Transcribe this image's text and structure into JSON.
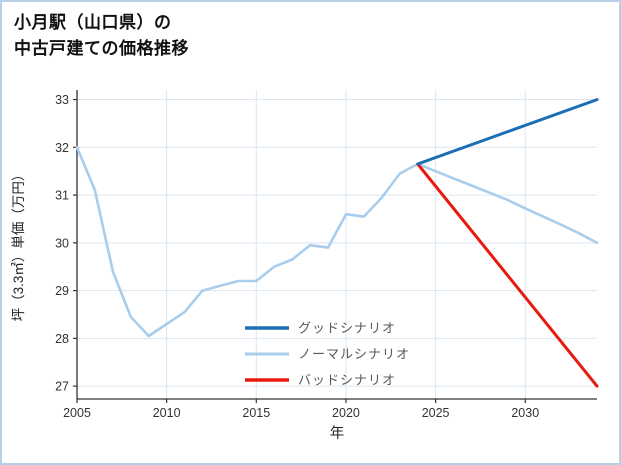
{
  "header": {
    "title_lines": [
      "小月駅（山口県）の",
      "中古戸建ての価格推移"
    ]
  },
  "chart_data": {
    "type": "line",
    "title": "小月駅（山口県）の中古戸建ての価格推移",
    "xlabel": "年",
    "ylabel": "坪（3.3㎡）単価（万円）",
    "xlim": [
      2005,
      2034
    ],
    "ylim": [
      26.73,
      33.2
    ],
    "xticks": [
      2005,
      2010,
      2015,
      2020,
      2025,
      2030
    ],
    "yticks": [
      27,
      28,
      29,
      30,
      31,
      32,
      33
    ],
    "grid": true,
    "grid_color": "#dce6f2",
    "axis_color": "#333333",
    "legend": {
      "position": "inside-lower-center",
      "text_color": "#595959",
      "order": [
        "グッドシナリオ",
        "ノーマルシナリオ",
        "バッドシナリオ"
      ]
    },
    "series": [
      {
        "name": "ノーマルシナリオ",
        "color": "#a9cdec",
        "width": 2.6,
        "x": [
          2005,
          2006,
          2007,
          2008,
          2009,
          2010,
          2011,
          2012,
          2013,
          2014,
          2015,
          2016,
          2017,
          2018,
          2019,
          2020,
          2021,
          2022,
          2023,
          2024,
          2025,
          2026,
          2027,
          2028,
          2029,
          2030,
          2031,
          2032,
          2033,
          2034
        ],
        "y": [
          32.0,
          31.1,
          29.4,
          28.45,
          28.05,
          28.3,
          28.55,
          29.0,
          29.1,
          29.2,
          29.2,
          29.5,
          29.65,
          29.95,
          29.9,
          30.6,
          30.55,
          30.95,
          31.45,
          31.65,
          31.5,
          31.35,
          31.2,
          31.05,
          30.9,
          30.72,
          30.55,
          30.38,
          30.2,
          30.0
        ]
      },
      {
        "name": "バッドシナリオ",
        "color": "#e8190f",
        "width": 3,
        "x": [
          2024,
          2034
        ],
        "y": [
          31.65,
          27.0
        ]
      },
      {
        "name": "グッドシナリオ",
        "color": "#1b6eb5",
        "width": 3,
        "x": [
          2024,
          2034
        ],
        "y": [
          31.65,
          33.0
        ]
      }
    ]
  }
}
